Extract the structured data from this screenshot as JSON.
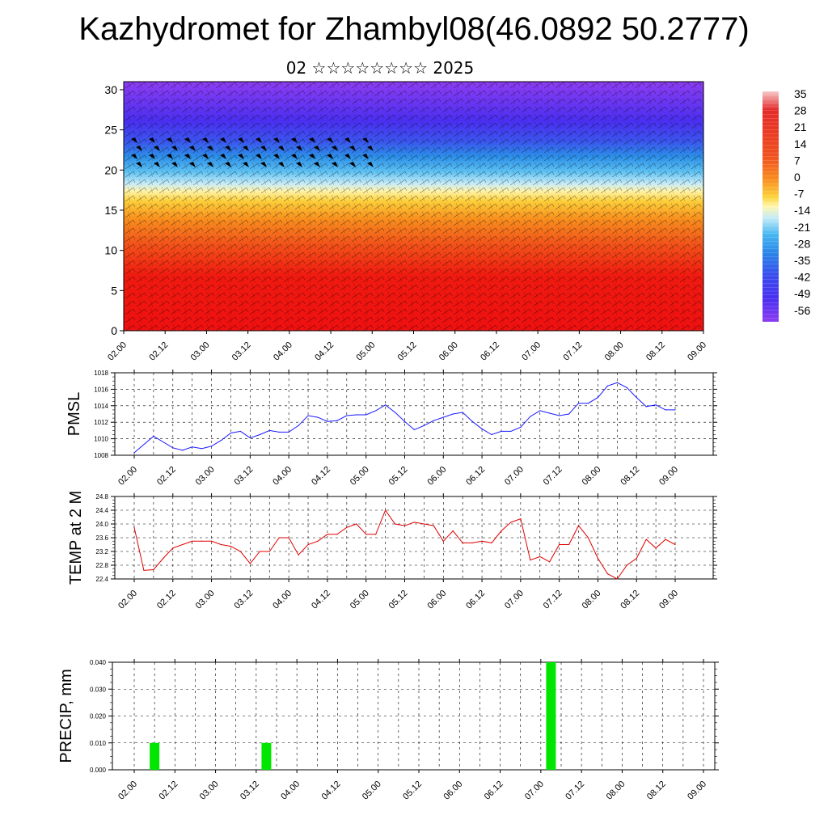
{
  "title": "Kazhydromet for Zhambyl08(46.0892 50.2777)",
  "subtitle": "02 ☆☆☆☆☆☆☆☆ 2025",
  "colors": {
    "pmsl_line": "#1a1aff",
    "temp_line": "#e00000",
    "precip_bar": "#00e600"
  },
  "chart_data": [
    {
      "type": "heatmap",
      "description": "Temperature cross-section with wind barbs",
      "x_ticks": [
        "02.00",
        "02.12",
        "03.00",
        "03.12",
        "04.00",
        "04.12",
        "05.00",
        "05.12",
        "06.00",
        "06.12",
        "07.00",
        "07.12",
        "08.00",
        "08.12",
        "09.00"
      ],
      "y_ticks": [
        0,
        5,
        10,
        15,
        20,
        25,
        30
      ],
      "ylim": [
        0,
        31
      ],
      "colorbar_labels": [
        "35",
        "28",
        "21",
        "14",
        "7",
        "0",
        "-7",
        "-14",
        "-21",
        "-28",
        "-35",
        "-42",
        "-49",
        "-56"
      ],
      "colorbar_colors": [
        "#f4c6c6",
        "#e0222a",
        "#f26a18",
        "#fbb123",
        "#fff5a0",
        "#b9e4f7",
        "#3bb4f0",
        "#2a7fe6",
        "#3b3bf0",
        "#8a33f2"
      ]
    },
    {
      "type": "line",
      "ylabel": "PMSL",
      "x_ticks": [
        "02.00",
        "02.12",
        "03.00",
        "03.12",
        "04.00",
        "04.12",
        "05.00",
        "05.12",
        "06.00",
        "06.12",
        "07.00",
        "07.12",
        "08.00",
        "08.12",
        "09.00"
      ],
      "y_ticks": [
        "1008",
        "1010",
        "1012",
        "1014",
        "1016",
        "1018"
      ],
      "ylim": [
        1008,
        1018
      ],
      "xmax": 168,
      "series": [
        {
          "x": [
            0,
            6,
            12,
            15,
            18,
            21,
            24,
            27,
            30,
            33,
            36,
            39,
            42,
            45,
            48,
            51,
            54,
            57,
            60,
            63,
            66,
            69,
            72,
            75,
            78,
            81,
            84,
            87,
            90,
            93,
            96,
            99,
            102,
            105,
            108,
            111,
            114,
            117,
            120,
            123,
            126,
            129,
            132,
            135,
            138,
            141,
            144,
            147,
            150,
            153,
            156,
            159,
            162,
            165,
            168
          ],
          "values": [
            1008.3,
            1010.3,
            1008.9,
            1008.6,
            1009.0,
            1008.8,
            1009.1,
            1009.8,
            1010.7,
            1010.9,
            1010.1,
            1010.5,
            1011.0,
            1010.8,
            1010.8,
            1011.6,
            1012.8,
            1012.6,
            1012.1,
            1012.2,
            1012.8,
            1012.9,
            1012.9,
            1013.4,
            1014.1,
            1013.2,
            1012.1,
            1011.1,
            1011.6,
            1012.2,
            1012.6,
            1013.0,
            1013.2,
            1012.1,
            1011.2,
            1010.5,
            1010.9,
            1010.9,
            1011.4,
            1012.7,
            1013.4,
            1013.1,
            1012.8,
            1013.0,
            1014.3,
            1014.3,
            1015.0,
            1016.4,
            1016.8,
            1016.2,
            1015.0,
            1013.9,
            1014.1,
            1013.5,
            1013.5
          ]
        }
      ]
    },
    {
      "type": "line",
      "ylabel": "TEMP at 2 M",
      "x_ticks": [
        "02.00",
        "02.12",
        "03.00",
        "03.12",
        "04.00",
        "04.12",
        "05.00",
        "05.12",
        "06.00",
        "06.12",
        "07.00",
        "07.12",
        "08.00",
        "08.12",
        "09.00"
      ],
      "y_ticks": [
        "22.4",
        "22.8",
        "23.2",
        "23.6",
        "24.0",
        "24.4",
        "24.8"
      ],
      "ylim": [
        22.4,
        24.8
      ],
      "xmax": 168,
      "series": [
        {
          "x": [
            0,
            3,
            6,
            9,
            12,
            15,
            18,
            21,
            24,
            27,
            30,
            33,
            36,
            39,
            42,
            45,
            48,
            51,
            54,
            57,
            60,
            63,
            66,
            69,
            72,
            75,
            78,
            81,
            84,
            87,
            90,
            93,
            96,
            99,
            102,
            105,
            108,
            111,
            114,
            117,
            120,
            123,
            126,
            129,
            132,
            135,
            138,
            141,
            144,
            147,
            150,
            153,
            156,
            159,
            162,
            165,
            168
          ],
          "values": [
            23.9,
            22.65,
            22.67,
            23.0,
            23.3,
            23.4,
            23.5,
            23.5,
            23.5,
            23.4,
            23.35,
            23.2,
            22.85,
            23.2,
            23.2,
            23.6,
            23.6,
            23.1,
            23.4,
            23.5,
            23.7,
            23.7,
            23.9,
            24.0,
            23.7,
            23.7,
            24.4,
            24.0,
            23.95,
            24.05,
            24.0,
            23.95,
            23.5,
            23.8,
            23.45,
            23.45,
            23.5,
            23.45,
            23.8,
            24.05,
            24.15,
            22.95,
            23.05,
            22.9,
            23.4,
            23.4,
            23.95,
            23.6,
            23.0,
            22.55,
            22.4,
            22.8,
            23.0,
            23.55,
            23.3,
            23.55,
            23.4
          ]
        }
      ]
    },
    {
      "type": "bar",
      "ylabel": "PRECIP, mm",
      "x_ticks": [
        "02.00",
        "02.12",
        "03.00",
        "03.12",
        "04.00",
        "04.12",
        "05.00",
        "05.12",
        "06.00",
        "06.12",
        "07.00",
        "07.12",
        "08.00",
        "08.12",
        "09.00"
      ],
      "y_ticks": [
        "0.000",
        "0.010",
        "0.020",
        "0.030",
        "0.040"
      ],
      "ylim": [
        0,
        0.04
      ],
      "xmax": 168,
      "bars": [
        {
          "x": 6,
          "value": 0.01
        },
        {
          "x": 39,
          "value": 0.01
        },
        {
          "x": 123,
          "value": 0.04
        }
      ]
    }
  ]
}
